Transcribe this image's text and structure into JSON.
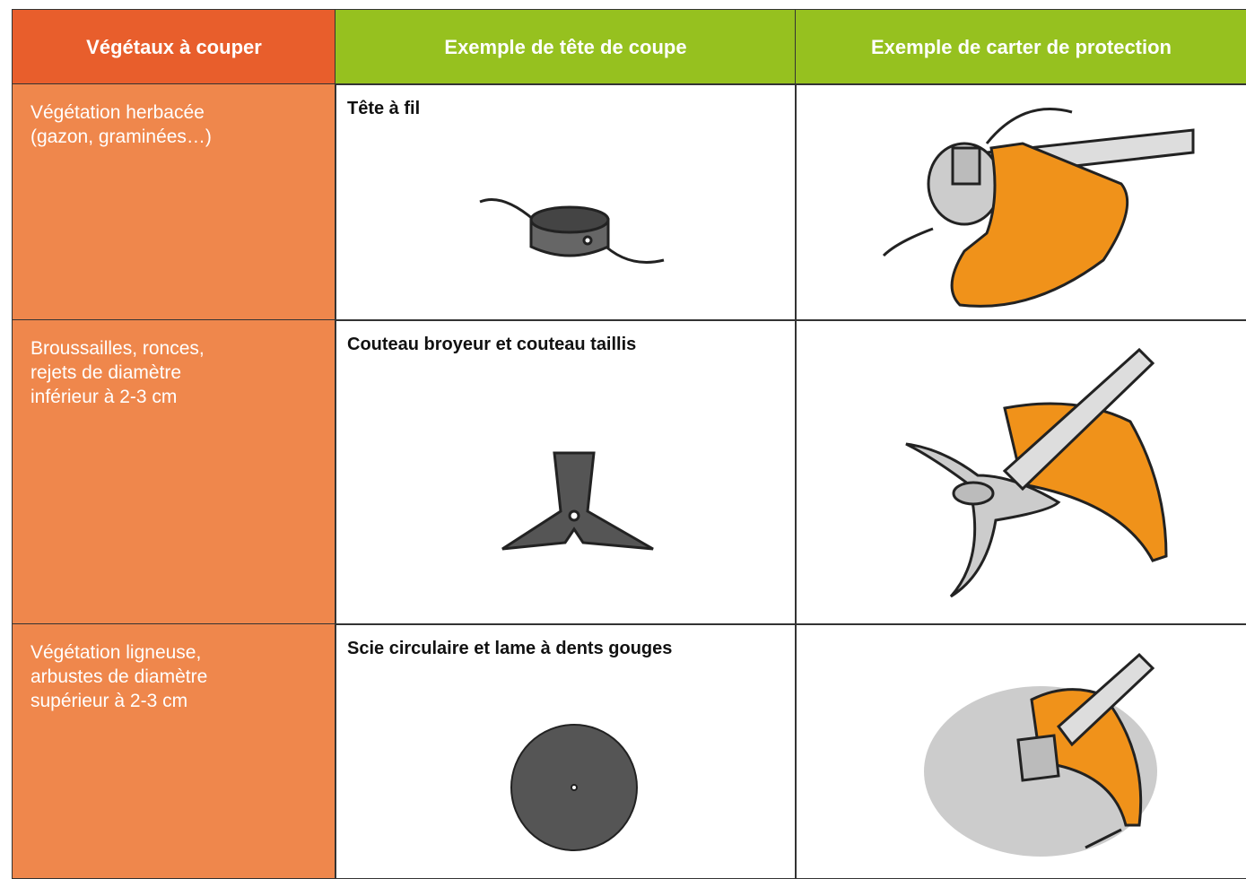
{
  "header": {
    "columns": [
      "Végétaux à couper",
      "Exemple de tête de coupe",
      "Exemple de carter de protection"
    ]
  },
  "rows": [
    {
      "vegetation": [
        "Végétation herbacée",
        "(gazon, graminées…)"
      ],
      "tool": "Tête à fil"
    },
    {
      "vegetation": [
        "Broussailles, ronces,",
        "rejets de diamètre",
        "inférieur à 2-3 cm"
      ],
      "tool": "Couteau broyeur et couteau taillis"
    },
    {
      "vegetation": [
        "Végétation ligneuse,",
        "arbustes de diamètre",
        "supérieur à 2-3 cm"
      ],
      "tool": "Scie circulaire et lame à dents gouges"
    }
  ]
}
